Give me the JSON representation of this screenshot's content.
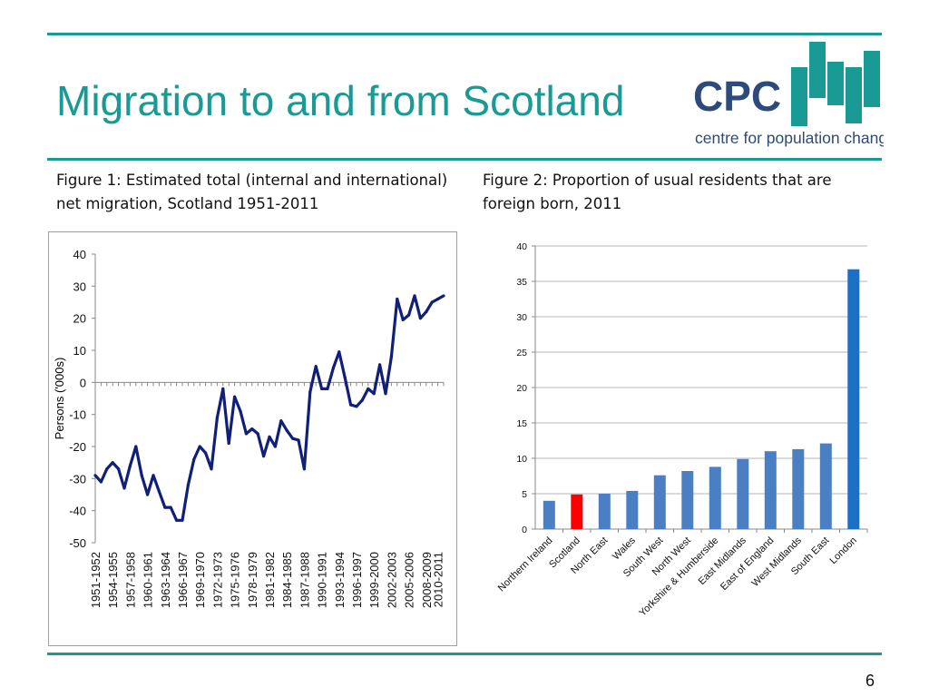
{
  "slide": {
    "title": "Migration to and from Scotland",
    "number": "6",
    "accent_color": "#1a9a95",
    "logo": {
      "text": "CPC",
      "tagline": "centre for population change",
      "text_color": "#2e4a7a",
      "bar_color": "#1a9a95"
    }
  },
  "captions": {
    "fig1": "Figure 1: Estimated total (internal and international) net migration, Scotland 1951-2011",
    "fig2": "Figure 2: Proportion of usual residents that are foreign born, 2011"
  },
  "chart_data": [
    {
      "type": "line",
      "ylabel": "Persons ('000s)",
      "ylim": [
        -50,
        40
      ],
      "yticks": [
        40,
        30,
        20,
        10,
        0,
        -10,
        -20,
        -30,
        -40,
        -50
      ],
      "x_tick_labels": [
        "1951-1952",
        "1954-1955",
        "1957-1958",
        "1960-1961",
        "1963-1964",
        "1966-1967",
        "1969-1970",
        "1972-1973",
        "1975-1976",
        "1978-1979",
        "1981-1982",
        "1984-1985",
        "1987-1988",
        "1990-1991",
        "1993-1994",
        "1996-1997",
        "1999-2000",
        "2002-2003",
        "2005-2006",
        "2008-2009",
        "2010-2011"
      ],
      "x_first_year": 1951,
      "values": [
        -29,
        -31,
        -27,
        -25,
        -27,
        -33,
        -26,
        -20,
        -29,
        -35,
        -29,
        -34,
        -39,
        -39,
        -43,
        -43,
        -32,
        -24,
        -20,
        -22,
        -27,
        -11,
        -2,
        -19,
        -4.5,
        -9,
        -16,
        -14.5,
        -16,
        -23,
        -17,
        -20,
        -12,
        -15,
        -17.5,
        -18,
        -27,
        -3,
        5,
        -2,
        -2,
        4.5,
        9.5,
        1.5,
        -7,
        -7.5,
        -5.5,
        -2,
        -3.5,
        5.5,
        -3.5,
        8,
        26,
        19.5,
        21,
        27,
        20,
        22,
        25,
        26,
        27
      ],
      "line_color": "#0f1f7a",
      "grid": false
    },
    {
      "type": "bar",
      "ylim": [
        0,
        40
      ],
      "yticks": [
        40,
        35,
        30,
        25,
        20,
        15,
        10,
        5,
        0
      ],
      "categories": [
        "Northern Ireland",
        "Scotland",
        "North East",
        "Wales",
        "South West",
        "North West",
        "Yorkshire & Humberside",
        "East Midlands",
        "East of England",
        "West Midlands",
        "South East",
        "London"
      ],
      "values": [
        4.0,
        4.9,
        5.0,
        5.4,
        7.6,
        8.2,
        8.8,
        9.9,
        11.0,
        11.3,
        12.1,
        36.7
      ],
      "colors": [
        "#4a7fc4",
        "#ff0000",
        "#4a7fc4",
        "#4a7fc4",
        "#4a7fc4",
        "#4a7fc4",
        "#4a7fc4",
        "#4a7fc4",
        "#4a7fc4",
        "#4a7fc4",
        "#4a7fc4",
        "#1c6fc4"
      ],
      "grid": true
    }
  ]
}
